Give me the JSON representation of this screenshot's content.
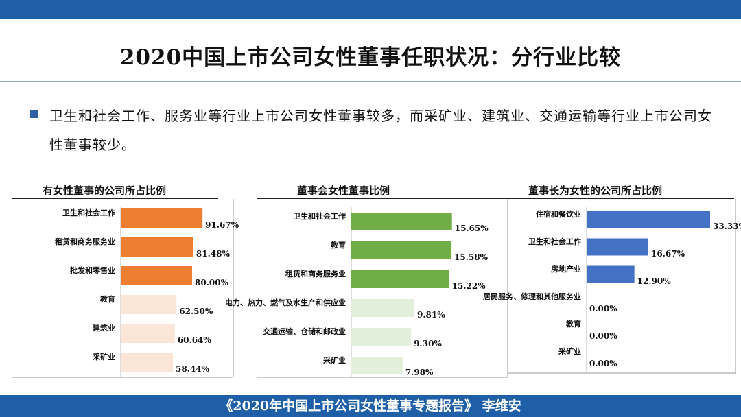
{
  "slide": {
    "title": "2020中国上市公司女性董事任职状况：分行业比较",
    "bullet": "卫生和社会工作、服务业等行业上市公司女性董事较多，而采矿业、建筑业、交通运输等行业上市公司女性董事较少。",
    "footer": "《2020年中国上市公司女性董事专题报告》 李维安"
  },
  "chart_data": [
    {
      "type": "bar",
      "orientation": "horizontal",
      "title": "有女性董事的公司所占比例",
      "categories": [
        "卫生和社会工作",
        "租赁和商务服务业",
        "批发和零售业",
        "教育",
        "建筑业",
        "采矿业"
      ],
      "values": [
        91.67,
        81.48,
        80.0,
        62.5,
        60.64,
        58.44
      ],
      "labels": [
        "91.67%",
        "81.48%",
        "80.00%",
        "62.50%",
        "60.64%",
        "58.44%"
      ],
      "colors": [
        "#ed7d31",
        "#ed7d31",
        "#ed7d31",
        "#fbe5d6",
        "#fbe5d6",
        "#fbe5d6"
      ]
    },
    {
      "type": "bar",
      "orientation": "horizontal",
      "title": "董事会女性董事比例",
      "categories": [
        "卫生和社会工作",
        "教育",
        "租赁和商务服务业",
        "电力、热力、燃气及水生产和供应业",
        "交通运输、仓储和邮政业",
        "采矿业"
      ],
      "values": [
        15.65,
        15.58,
        15.22,
        9.81,
        9.3,
        7.98
      ],
      "labels": [
        "15.65%",
        "15.58%",
        "15.22%",
        "9.81%",
        "9.30%",
        "7.98%"
      ],
      "colors": [
        "#70ad47",
        "#70ad47",
        "#70ad47",
        "#e2efda",
        "#e2efda",
        "#e2efda"
      ]
    },
    {
      "type": "bar",
      "orientation": "horizontal",
      "title": "董事长为女性的公司所占比例",
      "categories": [
        "住宿和餐饮业",
        "卫生和社会工作",
        "房地产业",
        "居民服务、修理和其他服务业",
        "教育",
        "采矿业"
      ],
      "values": [
        33.33,
        16.67,
        12.9,
        0.0,
        0.0,
        0.0
      ],
      "labels": [
        "33.33%",
        "16.67%",
        "12.90%",
        "0.00%",
        "0.00%",
        "0.00%"
      ],
      "colors": [
        "#4472c4",
        "#4472c4",
        "#4472c4",
        "#4472c4",
        "#4472c4",
        "#4472c4"
      ]
    }
  ]
}
